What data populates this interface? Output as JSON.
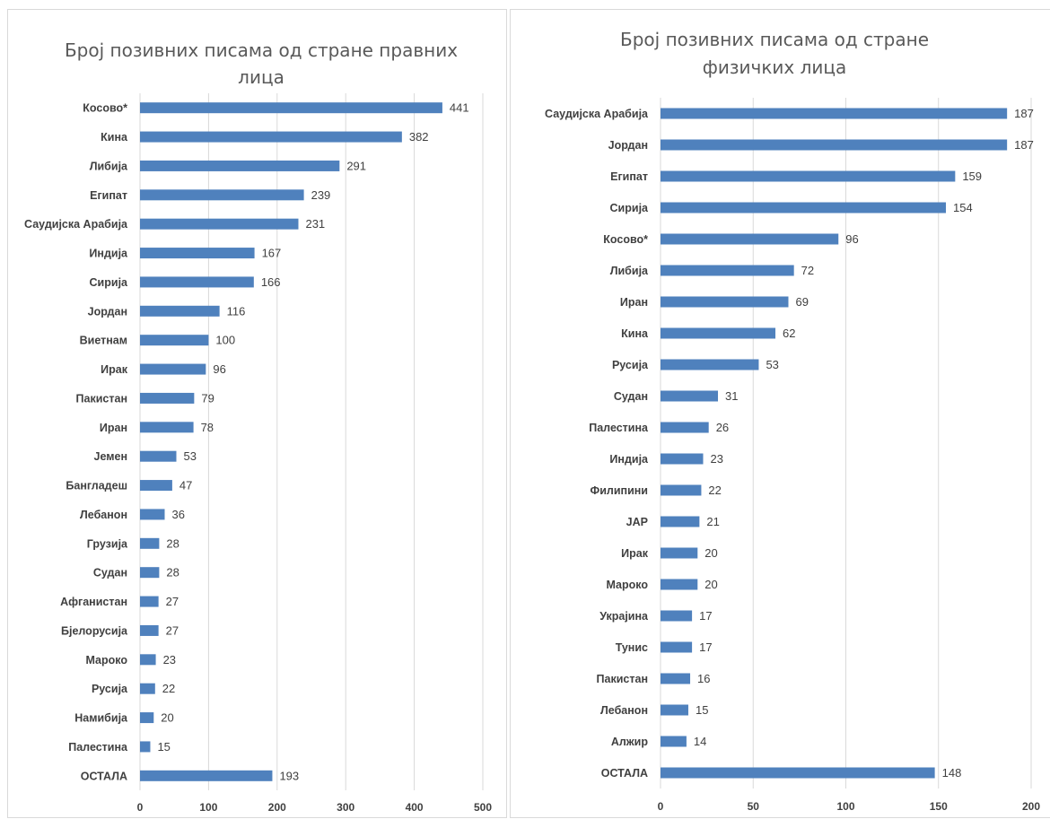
{
  "chart_data": [
    {
      "type": "bar",
      "orientation": "horizontal",
      "title_lines": [
        "Број позивних писама од стране правних",
        "лица"
      ],
      "categories": [
        "Косово*",
        "Кина",
        "Либија",
        "Египат",
        "Саудијска Арабија",
        "Индија",
        "Сирија",
        "Јордан",
        "Виетнам",
        "Ирак",
        "Пакистан",
        "Иран",
        "Јемен",
        "Бангладеш",
        "Лебанон",
        "Грузија",
        "Судан",
        "Афганистан",
        "Бјелорусија",
        "Мароко",
        "Русија",
        "Намибија",
        "Палестина",
        "ОСТАЛА"
      ],
      "values": [
        441,
        382,
        291,
        239,
        231,
        167,
        166,
        116,
        100,
        96,
        79,
        78,
        53,
        47,
        36,
        28,
        28,
        27,
        27,
        23,
        22,
        20,
        15,
        193
      ],
      "xlim": [
        0,
        500
      ],
      "xticks": [
        "0",
        "100",
        "200",
        "300",
        "400",
        "500"
      ],
      "grid": true,
      "bar_color": "#4f81bd"
    },
    {
      "type": "bar",
      "orientation": "horizontal",
      "title_lines": [
        "Број позивних писама од стране",
        "физичких лица"
      ],
      "categories": [
        "Саудијска Арабија",
        "Јордан",
        "Египат",
        "Сирија",
        "Косово*",
        "Либија",
        "Иран",
        "Кина",
        "Русија",
        "Судан",
        "Палестина",
        "Индија",
        "Филипини",
        "ЈАР",
        "Ирак",
        "Мароко",
        "Украјина",
        "Тунис",
        "Пакистан",
        "Лебанон",
        "Алжир",
        "ОСТАЛА"
      ],
      "values": [
        187,
        187,
        159,
        154,
        96,
        72,
        69,
        62,
        53,
        31,
        26,
        23,
        22,
        21,
        20,
        20,
        17,
        17,
        16,
        15,
        14,
        148
      ],
      "xlim": [
        0,
        200
      ],
      "xticks": [
        "0",
        "50",
        "100",
        "150",
        "200"
      ],
      "grid": true,
      "bar_color": "#4f81bd"
    }
  ]
}
